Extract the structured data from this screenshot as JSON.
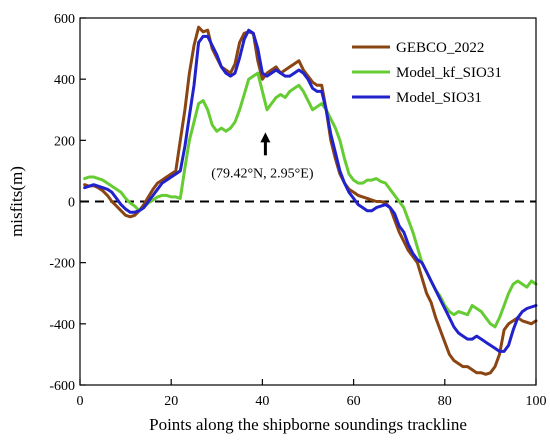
{
  "chart_data": {
    "type": "line",
    "xlabel": "Points along the shipborne soundings trackline",
    "ylabel": "misfits(m)",
    "xlim": [
      0,
      100
    ],
    "ylim": [
      -600,
      600
    ],
    "xticks": [
      0,
      20,
      40,
      60,
      80,
      100
    ],
    "yticks": [
      -600,
      -400,
      -200,
      0,
      200,
      400,
      600
    ],
    "legend_position": "top-right",
    "reference_line": {
      "y": 0,
      "style": "dashed",
      "color": "#000000"
    },
    "annotation": {
      "text": "(79.42°N, 2.95°E)",
      "x": 40,
      "y": 200,
      "arrow": "up"
    },
    "series": [
      {
        "name": "GEBCO_2022",
        "color": "#8B4513",
        "x": [
          1,
          2,
          3,
          4,
          5,
          6,
          7,
          8,
          9,
          10,
          11,
          12,
          13,
          14,
          15,
          16,
          17,
          18,
          19,
          20,
          21,
          22,
          23,
          24,
          25,
          26,
          27,
          28,
          29,
          30,
          31,
          32,
          33,
          34,
          35,
          36,
          37,
          38,
          39,
          40,
          41,
          42,
          43,
          44,
          45,
          46,
          47,
          48,
          49,
          50,
          51,
          52,
          53,
          54,
          55,
          56,
          57,
          58,
          59,
          60,
          61,
          62,
          63,
          64,
          65,
          66,
          67,
          68,
          69,
          70,
          71,
          72,
          73,
          74,
          75,
          76,
          77,
          78,
          79,
          80,
          81,
          82,
          83,
          84,
          85,
          86,
          87,
          88,
          89,
          90,
          91,
          92,
          93,
          94,
          95,
          96,
          97,
          98,
          99,
          100
        ],
        "y": [
          55,
          50,
          52,
          45,
          35,
          20,
          0,
          -15,
          -30,
          -45,
          -50,
          -45,
          -30,
          -10,
          15,
          40,
          60,
          70,
          80,
          90,
          100,
          200,
          300,
          420,
          510,
          570,
          555,
          560,
          500,
          470,
          440,
          430,
          420,
          450,
          520,
          550,
          555,
          550,
          460,
          400,
          420,
          430,
          440,
          420,
          430,
          440,
          450,
          460,
          430,
          410,
          390,
          380,
          380,
          300,
          200,
          140,
          90,
          60,
          40,
          30,
          20,
          15,
          10,
          5,
          0,
          0,
          -5,
          -20,
          -60,
          -100,
          -130,
          -160,
          -180,
          -200,
          -250,
          -300,
          -330,
          -380,
          -420,
          -460,
          -500,
          -520,
          -530,
          -540,
          -540,
          -550,
          -560,
          -560,
          -565,
          -560,
          -540,
          -500,
          -420,
          -400,
          -390,
          -380,
          -390,
          -395,
          -400,
          -390
        ]
      },
      {
        "name": "Model_kf_SIO31",
        "color": "#66CC33",
        "x": [
          1,
          2,
          3,
          4,
          5,
          6,
          7,
          8,
          9,
          10,
          11,
          12,
          13,
          14,
          15,
          16,
          17,
          18,
          19,
          20,
          21,
          22,
          23,
          24,
          25,
          26,
          27,
          28,
          29,
          30,
          31,
          32,
          33,
          34,
          35,
          36,
          37,
          38,
          39,
          40,
          41,
          42,
          43,
          44,
          45,
          46,
          47,
          48,
          49,
          50,
          51,
          52,
          53,
          54,
          55,
          56,
          57,
          58,
          59,
          60,
          61,
          62,
          63,
          64,
          65,
          66,
          67,
          68,
          69,
          70,
          71,
          72,
          73,
          74,
          75,
          76,
          77,
          78,
          79,
          80,
          81,
          82,
          83,
          84,
          85,
          86,
          87,
          88,
          89,
          90,
          91,
          92,
          93,
          94,
          95,
          96,
          97,
          98,
          99,
          100
        ],
        "y": [
          75,
          80,
          80,
          75,
          70,
          60,
          50,
          40,
          30,
          10,
          -5,
          -15,
          -30,
          -20,
          -5,
          5,
          15,
          20,
          20,
          15,
          15,
          10,
          110,
          200,
          260,
          320,
          330,
          300,
          250,
          230,
          240,
          230,
          240,
          260,
          300,
          350,
          400,
          410,
          420,
          360,
          300,
          320,
          340,
          350,
          340,
          360,
          370,
          380,
          360,
          330,
          300,
          310,
          320,
          300,
          270,
          240,
          200,
          140,
          90,
          70,
          60,
          60,
          70,
          70,
          75,
          65,
          60,
          40,
          20,
          0,
          -20,
          -60,
          -100,
          -150,
          -200,
          -230,
          -260,
          -290,
          -310,
          -340,
          -360,
          -370,
          -360,
          -365,
          -370,
          -340,
          -350,
          -360,
          -380,
          -400,
          -410,
          -380,
          -340,
          -300,
          -270,
          -260,
          -270,
          -280,
          -260,
          -270
        ]
      },
      {
        "name": "Model_SIO31",
        "color": "#2222CC",
        "x": [
          1,
          2,
          3,
          4,
          5,
          6,
          7,
          8,
          9,
          10,
          11,
          12,
          13,
          14,
          15,
          16,
          17,
          18,
          19,
          20,
          21,
          22,
          23,
          24,
          25,
          26,
          27,
          28,
          29,
          30,
          31,
          32,
          33,
          34,
          35,
          36,
          37,
          38,
          39,
          40,
          41,
          42,
          43,
          44,
          45,
          46,
          47,
          48,
          49,
          50,
          51,
          52,
          53,
          54,
          55,
          56,
          57,
          58,
          59,
          60,
          61,
          62,
          63,
          64,
          65,
          66,
          67,
          68,
          69,
          70,
          71,
          72,
          73,
          74,
          75,
          76,
          77,
          78,
          79,
          80,
          81,
          82,
          83,
          84,
          85,
          86,
          87,
          88,
          89,
          90,
          91,
          92,
          93,
          94,
          95,
          96,
          97,
          98,
          99,
          100
        ],
        "y": [
          45,
          50,
          55,
          50,
          45,
          40,
          30,
          10,
          -10,
          -25,
          -35,
          -35,
          -30,
          -20,
          0,
          20,
          40,
          60,
          70,
          80,
          90,
          100,
          180,
          280,
          380,
          520,
          540,
          540,
          510,
          480,
          440,
          420,
          410,
          420,
          470,
          530,
          560,
          550,
          500,
          420,
          410,
          420,
          430,
          420,
          410,
          410,
          420,
          430,
          420,
          400,
          370,
          360,
          360,
          300,
          220,
          160,
          100,
          60,
          30,
          10,
          -10,
          -20,
          -30,
          -30,
          -20,
          -15,
          -10,
          -20,
          -40,
          -80,
          -100,
          -140,
          -170,
          -190,
          -200,
          -230,
          -260,
          -290,
          -320,
          -350,
          -380,
          -410,
          -430,
          -440,
          -450,
          -450,
          -440,
          -450,
          -460,
          -470,
          -480,
          -490,
          -490,
          -470,
          -420,
          -380,
          -360,
          -350,
          -345,
          -340
        ]
      }
    ]
  }
}
